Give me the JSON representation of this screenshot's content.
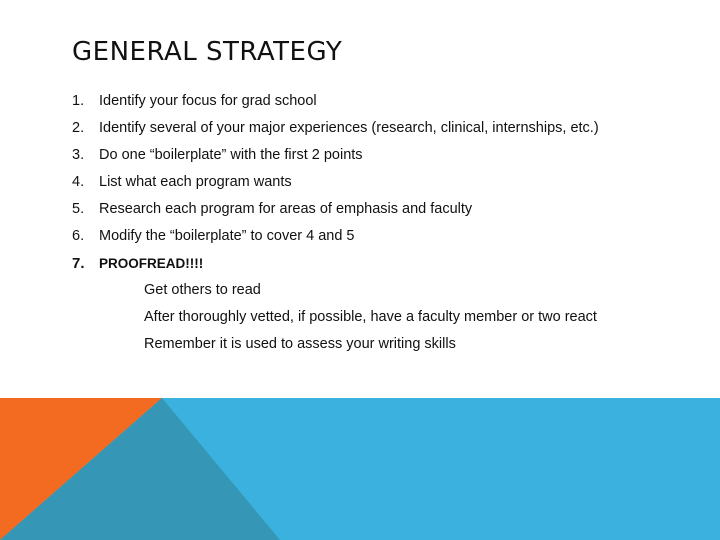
{
  "slide": {
    "title": "GENERAL STRATEGY",
    "items": [
      {
        "number": "1.",
        "text": "Identify your focus for grad school"
      },
      {
        "number": "2.",
        "text": "Identify several of your major experiences (research, clinical, internships, etc.)"
      },
      {
        "number": "3.",
        "text": "Do one “boilerplate” with the first 2 points"
      },
      {
        "number": "4.",
        "text": "List what each program wants"
      },
      {
        "number": "5.",
        "text": "Research each program for areas of emphasis and faculty"
      },
      {
        "number": "6.",
        "text": "Modify the “boilerplate” to cover 4 and 5"
      },
      {
        "number": "7.",
        "text": "PROOFREAD!!!!"
      }
    ],
    "subitems": [
      "Get others to read",
      "After thoroughly vetted, if possible, have a faculty member or two react",
      "Remember it is used to assess your writing skills"
    ]
  },
  "colors": {
    "orange": "#f26b21",
    "light_blue": "#3ab1de",
    "dark_teal": "#3597b5"
  }
}
